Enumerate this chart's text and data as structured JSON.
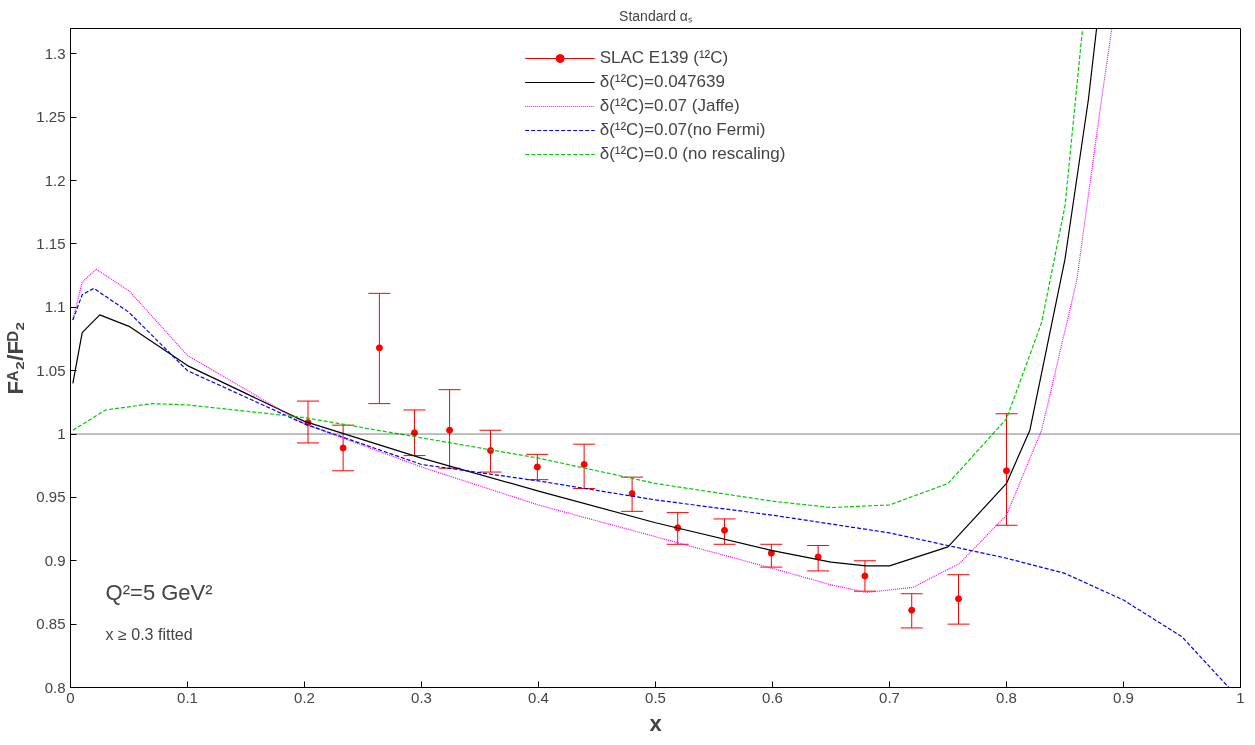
{
  "chart_data": {
    "type": "line",
    "title": "Standard αₛ",
    "xlabel": "x",
    "ylabel": "Fᴬ₂/Fᴰ₂",
    "xlim": [
      0,
      1
    ],
    "ylim": [
      0.8,
      1.32
    ],
    "xticks": [
      0,
      0.1,
      0.2,
      0.3,
      0.4,
      0.5,
      0.6,
      0.7,
      0.8,
      0.9,
      1
    ],
    "yticks": [
      0.8,
      0.85,
      0.9,
      0.95,
      1,
      1.05,
      1.1,
      1.15,
      1.2,
      1.25,
      1.3
    ],
    "grid": false,
    "legend": "top",
    "ref_lines": [
      {
        "axis": "y",
        "value": 1,
        "color": "#000000",
        "line_style": "dotted"
      }
    ],
    "annotations": [
      "Q²=5 GeV²",
      "x ≥ 0.3 fitted"
    ],
    "series": [
      {
        "name": "SLAC E139 (¹²C)",
        "type": "scatter",
        "marker": "circle",
        "color": "#ff0000",
        "x": [
          0.203,
          0.233,
          0.264,
          0.294,
          0.324,
          0.359,
          0.399,
          0.439,
          0.48,
          0.519,
          0.559,
          0.599,
          0.639,
          0.679,
          0.719,
          0.759,
          0.8
        ],
        "values": [
          1.009,
          0.989,
          1.068,
          1.001,
          1.003,
          0.987,
          0.974,
          0.976,
          0.953,
          0.926,
          0.924,
          0.906,
          0.903,
          0.888,
          0.861,
          0.87,
          0.971
        ],
        "errors": [
          [
            0.993,
            1.026
          ],
          [
            0.971,
            1.007
          ],
          [
            1.024,
            1.111
          ],
          [
            0.983,
            1.019
          ],
          [
            0.973,
            1.035
          ],
          [
            0.97,
            1.003
          ],
          [
            0.964,
            0.984
          ],
          [
            0.957,
            0.992
          ],
          [
            0.939,
            0.966
          ],
          [
            0.913,
            0.938
          ],
          [
            0.913,
            0.933
          ],
          [
            0.895,
            0.913
          ],
          [
            0.892,
            0.912
          ],
          [
            0.876,
            0.9
          ],
          [
            0.847,
            0.874
          ],
          [
            0.85,
            0.889
          ],
          [
            0.928,
            1.016
          ]
        ]
      },
      {
        "name": "δ(¹²C)=0.047639",
        "type": "line",
        "line_style": "solid",
        "color": "#000000",
        "x": [
          0.002,
          0.01,
          0.025,
          0.05,
          0.1,
          0.2,
          0.3,
          0.4,
          0.5,
          0.6,
          0.65,
          0.68,
          0.7,
          0.75,
          0.8,
          0.82,
          0.85,
          0.87,
          0.877
        ],
        "values": [
          1.04,
          1.08,
          1.094,
          1.085,
          1.054,
          1.01,
          0.981,
          0.955,
          0.93,
          0.908,
          0.899,
          0.896,
          0.896,
          0.911,
          0.961,
          1.003,
          1.138,
          1.264,
          1.32
        ]
      },
      {
        "name": "δ(¹²C)=0.07 (Jaffe)",
        "type": "line",
        "line_style": "dotted",
        "color": "#ff00ff",
        "x": [
          0.002,
          0.01,
          0.022,
          0.05,
          0.1,
          0.2,
          0.3,
          0.4,
          0.5,
          0.6,
          0.65,
          0.68,
          0.72,
          0.76,
          0.8,
          0.83,
          0.86,
          0.88,
          0.89
        ],
        "values": [
          1.09,
          1.12,
          1.13,
          1.113,
          1.062,
          1.008,
          0.974,
          0.944,
          0.919,
          0.894,
          0.881,
          0.875,
          0.879,
          0.898,
          0.936,
          1.003,
          1.121,
          1.256,
          1.32
        ]
      },
      {
        "name": "δ(¹²C)=0.07(no Fermi)",
        "type": "line",
        "line_style": "dashed",
        "color": "#0000ff",
        "x": [
          0.002,
          0.01,
          0.02,
          0.05,
          0.1,
          0.2,
          0.3,
          0.4,
          0.5,
          0.6,
          0.7,
          0.8,
          0.85,
          0.9,
          0.95,
          0.98,
          0.99
        ],
        "values": [
          1.09,
          1.11,
          1.115,
          1.096,
          1.05,
          1.008,
          0.976,
          0.963,
          0.948,
          0.936,
          0.922,
          0.902,
          0.89,
          0.869,
          0.84,
          0.81,
          0.8
        ]
      },
      {
        "name": "δ(¹²C)=0.0 (no rescaling)",
        "type": "line",
        "line_style": "dashed",
        "color": "#00cc00",
        "x": [
          0.002,
          0.03,
          0.07,
          0.1,
          0.2,
          0.3,
          0.4,
          0.5,
          0.6,
          0.65,
          0.7,
          0.75,
          0.8,
          0.83,
          0.85,
          0.865
        ],
        "values": [
          1.003,
          1.019,
          1.024,
          1.023,
          1.013,
          0.997,
          0.981,
          0.961,
          0.947,
          0.942,
          0.944,
          0.961,
          1.012,
          1.088,
          1.18,
          1.32
        ]
      }
    ]
  }
}
